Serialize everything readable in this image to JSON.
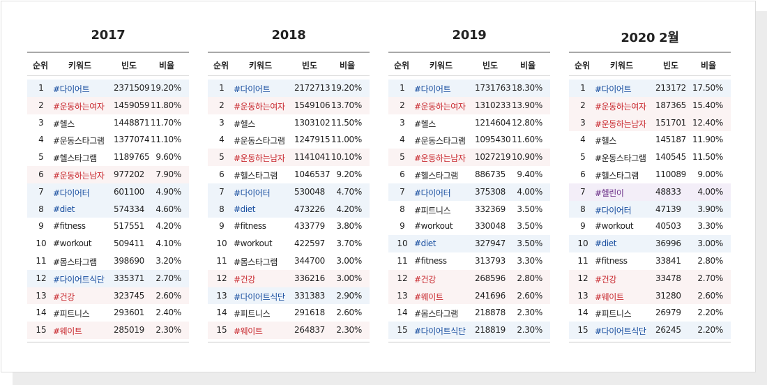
{
  "headers": {
    "rank": "순위",
    "keyword": "키워드",
    "freq": "빈도",
    "ratio": "비율"
  },
  "tables": [
    {
      "year": "2017",
      "rows": [
        {
          "rank": "1",
          "keyword": "#다이어트",
          "freq": "2371509",
          "ratio": "19.20%",
          "tone": "blue"
        },
        {
          "rank": "2",
          "keyword": "#운동하는여자",
          "freq": "1459059",
          "ratio": "11.80%",
          "tone": "red"
        },
        {
          "rank": "3",
          "keyword": "#헬스",
          "freq": "1448871",
          "ratio": "11.70%",
          "tone": "none"
        },
        {
          "rank": "4",
          "keyword": "#운동스타그램",
          "freq": "1377074",
          "ratio": "11.10%",
          "tone": "none"
        },
        {
          "rank": "5",
          "keyword": "#헬스타그램",
          "freq": "1189765",
          "ratio": "9.60%",
          "tone": "none"
        },
        {
          "rank": "6",
          "keyword": "#운동하는남자",
          "freq": "977202",
          "ratio": "7.90%",
          "tone": "red"
        },
        {
          "rank": "7",
          "keyword": "#다이어터",
          "freq": "601100",
          "ratio": "4.90%",
          "tone": "blue"
        },
        {
          "rank": "8",
          "keyword": "#diet",
          "freq": "574334",
          "ratio": "4.60%",
          "tone": "blue"
        },
        {
          "rank": "9",
          "keyword": "#fitness",
          "freq": "517551",
          "ratio": "4.20%",
          "tone": "none"
        },
        {
          "rank": "10",
          "keyword": "#workout",
          "freq": "509411",
          "ratio": "4.10%",
          "tone": "none"
        },
        {
          "rank": "11",
          "keyword": "#몸스타그램",
          "freq": "398690",
          "ratio": "3.20%",
          "tone": "none"
        },
        {
          "rank": "12",
          "keyword": "#다이어트식단",
          "freq": "335371",
          "ratio": "2.70%",
          "tone": "blue"
        },
        {
          "rank": "13",
          "keyword": "#건강",
          "freq": "323745",
          "ratio": "2.60%",
          "tone": "red"
        },
        {
          "rank": "14",
          "keyword": "#피트니스",
          "freq": "293601",
          "ratio": "2.40%",
          "tone": "none"
        },
        {
          "rank": "15",
          "keyword": "#웨이트",
          "freq": "285019",
          "ratio": "2.30%",
          "tone": "red"
        }
      ]
    },
    {
      "year": "2018",
      "rows": [
        {
          "rank": "1",
          "keyword": "#다이어트",
          "freq": "2172713",
          "ratio": "19.20%",
          "tone": "blue"
        },
        {
          "rank": "2",
          "keyword": "#운동하는여자",
          "freq": "1549106",
          "ratio": "13.70%",
          "tone": "red"
        },
        {
          "rank": "3",
          "keyword": "#헬스",
          "freq": "1303102",
          "ratio": "11.50%",
          "tone": "none"
        },
        {
          "rank": "4",
          "keyword": "#운동스타그램",
          "freq": "1247915",
          "ratio": "11.00%",
          "tone": "none"
        },
        {
          "rank": "5",
          "keyword": "#운동하는남자",
          "freq": "1141041",
          "ratio": "10.10%",
          "tone": "red"
        },
        {
          "rank": "6",
          "keyword": "#헬스타그램",
          "freq": "1046537",
          "ratio": "9.20%",
          "tone": "none"
        },
        {
          "rank": "7",
          "keyword": "#다이어터",
          "freq": "530048",
          "ratio": "4.70%",
          "tone": "blue"
        },
        {
          "rank": "8",
          "keyword": "#diet",
          "freq": "473226",
          "ratio": "4.20%",
          "tone": "blue"
        },
        {
          "rank": "9",
          "keyword": "#fitness",
          "freq": "433779",
          "ratio": "3.80%",
          "tone": "none"
        },
        {
          "rank": "10",
          "keyword": "#workout",
          "freq": "422597",
          "ratio": "3.70%",
          "tone": "none"
        },
        {
          "rank": "11",
          "keyword": "#몸스타그램",
          "freq": "344700",
          "ratio": "3.00%",
          "tone": "none"
        },
        {
          "rank": "12",
          "keyword": "#건강",
          "freq": "336216",
          "ratio": "3.00%",
          "tone": "red"
        },
        {
          "rank": "13",
          "keyword": "#다이어트식단",
          "freq": "331383",
          "ratio": "2.90%",
          "tone": "blue"
        },
        {
          "rank": "14",
          "keyword": "#피트니스",
          "freq": "291618",
          "ratio": "2.60%",
          "tone": "none"
        },
        {
          "rank": "15",
          "keyword": "#웨이트",
          "freq": "264837",
          "ratio": "2.30%",
          "tone": "red"
        }
      ]
    },
    {
      "year": "2019",
      "rows": [
        {
          "rank": "1",
          "keyword": "#다이어트",
          "freq": "1731763",
          "ratio": "18.30%",
          "tone": "blue"
        },
        {
          "rank": "2",
          "keyword": "#운동하는여자",
          "freq": "1310233",
          "ratio": "13.90%",
          "tone": "red"
        },
        {
          "rank": "3",
          "keyword": "#헬스",
          "freq": "1214604",
          "ratio": "12.80%",
          "tone": "none"
        },
        {
          "rank": "4",
          "keyword": "#운동스타그램",
          "freq": "1095430",
          "ratio": "11.60%",
          "tone": "none"
        },
        {
          "rank": "5",
          "keyword": "#운동하는남자",
          "freq": "1027219",
          "ratio": "10.90%",
          "tone": "red"
        },
        {
          "rank": "6",
          "keyword": "#헬스타그램",
          "freq": "886735",
          "ratio": "9.40%",
          "tone": "none"
        },
        {
          "rank": "7",
          "keyword": "#다이어터",
          "freq": "375308",
          "ratio": "4.00%",
          "tone": "blue"
        },
        {
          "rank": "8",
          "keyword": "#피트니스",
          "freq": "332369",
          "ratio": "3.50%",
          "tone": "none"
        },
        {
          "rank": "9",
          "keyword": "#workout",
          "freq": "330048",
          "ratio": "3.50%",
          "tone": "none"
        },
        {
          "rank": "10",
          "keyword": "#diet",
          "freq": "327947",
          "ratio": "3.50%",
          "tone": "blue"
        },
        {
          "rank": "11",
          "keyword": "#fitness",
          "freq": "313793",
          "ratio": "3.30%",
          "tone": "none"
        },
        {
          "rank": "12",
          "keyword": "#건강",
          "freq": "268596",
          "ratio": "2.80%",
          "tone": "red"
        },
        {
          "rank": "13",
          "keyword": "#웨이트",
          "freq": "241696",
          "ratio": "2.60%",
          "tone": "red"
        },
        {
          "rank": "14",
          "keyword": "#몸스타그램",
          "freq": "218878",
          "ratio": "2.30%",
          "tone": "none"
        },
        {
          "rank": "15",
          "keyword": "#다이어트식단",
          "freq": "218819",
          "ratio": "2.30%",
          "tone": "blue"
        }
      ]
    },
    {
      "year": "2020 2월",
      "rows": [
        {
          "rank": "1",
          "keyword": "#다이어트",
          "freq": "213172",
          "ratio": "17.50%",
          "tone": "blue"
        },
        {
          "rank": "2",
          "keyword": "#운동하는여자",
          "freq": "187365",
          "ratio": "15.40%",
          "tone": "red"
        },
        {
          "rank": "3",
          "keyword": "#운동하는남자",
          "freq": "151701",
          "ratio": "12.40%",
          "tone": "red"
        },
        {
          "rank": "4",
          "keyword": "#헬스",
          "freq": "145187",
          "ratio": "11.90%",
          "tone": "none"
        },
        {
          "rank": "5",
          "keyword": "#운동스타그램",
          "freq": "140545",
          "ratio": "11.50%",
          "tone": "none"
        },
        {
          "rank": "6",
          "keyword": "#헬스타그램",
          "freq": "110089",
          "ratio": "9.00%",
          "tone": "none"
        },
        {
          "rank": "7",
          "keyword": "#헬린이",
          "freq": "48833",
          "ratio": "4.00%",
          "tone": "purple"
        },
        {
          "rank": "8",
          "keyword": "#다이어터",
          "freq": "47139",
          "ratio": "3.90%",
          "tone": "blue"
        },
        {
          "rank": "9",
          "keyword": "#workout",
          "freq": "40503",
          "ratio": "3.30%",
          "tone": "none"
        },
        {
          "rank": "10",
          "keyword": "#diet",
          "freq": "36996",
          "ratio": "3.00%",
          "tone": "blue"
        },
        {
          "rank": "11",
          "keyword": "#fitness",
          "freq": "33841",
          "ratio": "2.80%",
          "tone": "none"
        },
        {
          "rank": "12",
          "keyword": "#건강",
          "freq": "33478",
          "ratio": "2.70%",
          "tone": "red"
        },
        {
          "rank": "13",
          "keyword": "#웨이트",
          "freq": "31280",
          "ratio": "2.60%",
          "tone": "red"
        },
        {
          "rank": "14",
          "keyword": "#피트니스",
          "freq": "26979",
          "ratio": "2.20%",
          "tone": "none"
        },
        {
          "rank": "15",
          "keyword": "#다이어트식단",
          "freq": "26245",
          "ratio": "2.20%",
          "tone": "blue"
        }
      ]
    }
  ],
  "colors": {
    "blue_text": "#1a4fa0",
    "red_text": "#c8282e",
    "purple_text": "#6a2d86",
    "blue_bg": "#eef4fa",
    "red_bg": "#fbf3f3",
    "purple_bg": "#f3eef8"
  }
}
